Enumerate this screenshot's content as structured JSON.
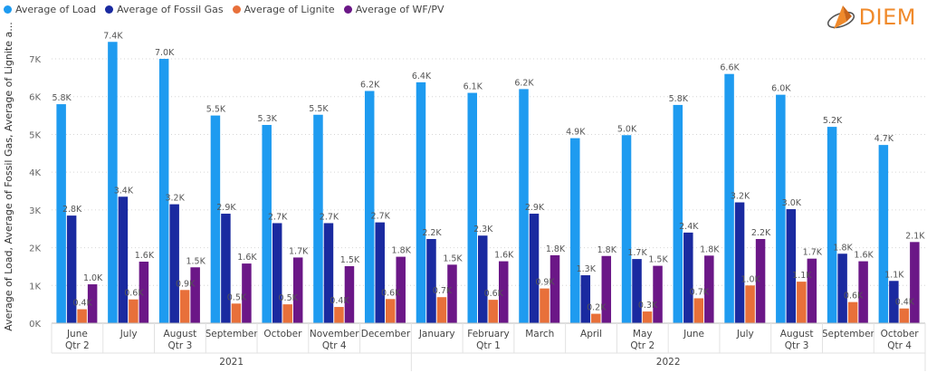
{
  "legend": [
    {
      "label": "Average of  Load",
      "color": "#1e9bf0"
    },
    {
      "label": "Average of Fossil Gas",
      "color": "#1a2aa0"
    },
    {
      "label": "Average of Lignite",
      "color": "#e8703a"
    },
    {
      "label": "Average of WF/PV",
      "color": "#6b1787"
    }
  ],
  "logo": {
    "text": "DIEM"
  },
  "chart_data": {
    "type": "bar",
    "ylabel": "Average of Load, Average of Fossil Gas, Average of Lignite a...",
    "ylim": [
      0,
      7600
    ],
    "yticks": [
      {
        "value": 0,
        "label": "0K"
      },
      {
        "value": 1000,
        "label": "1K"
      },
      {
        "value": 2000,
        "label": "2K"
      },
      {
        "value": 3000,
        "label": "3K"
      },
      {
        "value": 4000,
        "label": "4K"
      },
      {
        "value": 5000,
        "label": "5K"
      },
      {
        "value": 6000,
        "label": "6K"
      },
      {
        "value": 7000,
        "label": "7K"
      }
    ],
    "categories": [
      "June",
      "July",
      "August",
      "September",
      "October",
      "November",
      "December",
      "January",
      "February",
      "March",
      "April",
      "May",
      "June",
      "July",
      "August",
      "September",
      "October"
    ],
    "quarters": [
      {
        "label": "Qtr 2",
        "start": 0,
        "end": 0
      },
      {
        "label": "Qtr 3",
        "start": 1,
        "end": 3
      },
      {
        "label": "Qtr 4",
        "start": 4,
        "end": 6
      },
      {
        "label": "Qtr 1",
        "start": 7,
        "end": 9
      },
      {
        "label": "Qtr 2",
        "start": 10,
        "end": 12
      },
      {
        "label": "Qtr 3",
        "start": 13,
        "end": 15
      },
      {
        "label": "Qtr 4",
        "start": 16,
        "end": 16
      }
    ],
    "years": [
      {
        "label": "2021",
        "start": 0,
        "end": 6
      },
      {
        "label": "2022",
        "start": 7,
        "end": 16
      }
    ],
    "series": [
      {
        "name": "Average of  Load",
        "color": "#1e9bf0",
        "values": [
          5800,
          7450,
          7000,
          5500,
          5250,
          5520,
          6150,
          6380,
          6100,
          6200,
          4900,
          4980,
          5780,
          6600,
          6050,
          5200,
          4720
        ],
        "labels": [
          "5.8K",
          "7.4K",
          "7.0K",
          "5.5K",
          "5.3K",
          "5.5K",
          "6.2K",
          "6.4K",
          "6.1K",
          "6.2K",
          "4.9K",
          "5.0K",
          "5.8K",
          "6.6K",
          "6.0K",
          "5.2K",
          "4.7K"
        ]
      },
      {
        "name": "Average of Fossil Gas",
        "color": "#1a2aa0",
        "values": [
          2850,
          3350,
          3150,
          2900,
          2650,
          2650,
          2670,
          2230,
          2320,
          2900,
          1270,
          1700,
          2400,
          3200,
          3020,
          1840,
          1120
        ],
        "labels": [
          "2.8K",
          "3.4K",
          "3.2K",
          "2.9K",
          "2.7K",
          "2.7K",
          "2.7K",
          "2.2K",
          "2.3K",
          "2.9K",
          "1.3K",
          "1.7K",
          "2.4K",
          "3.2K",
          "3.0K",
          "1.8K",
          "1.1K"
        ]
      },
      {
        "name": "Average of Lignite",
        "color": "#e8703a",
        "values": [
          370,
          630,
          880,
          520,
          500,
          430,
          640,
          690,
          620,
          920,
          250,
          310,
          660,
          1000,
          1100,
          560,
          390
        ],
        "labels": [
          "0.4K",
          "0.6K",
          "0.9K",
          "0.5K",
          "0.5K",
          "0.4K",
          "0.6K",
          "0.7K",
          "0.6K",
          "0.9K",
          "0.2K",
          "0.3K",
          "0.7K",
          "1.0K",
          "1.1K",
          "0.6K",
          "0.4K"
        ]
      },
      {
        "name": "Average of WF/PV",
        "color": "#6b1787",
        "values": [
          1030,
          1630,
          1480,
          1580,
          1740,
          1510,
          1760,
          1550,
          1640,
          1800,
          1780,
          1520,
          1790,
          2230,
          1710,
          1640,
          2150
        ],
        "labels": [
          "1.0K",
          "1.6K",
          "1.5K",
          "1.6K",
          "1.7K",
          "1.5K",
          "1.8K",
          "1.5K",
          "1.6K",
          "1.8K",
          "1.8K",
          "1.5K",
          "1.8K",
          "2.2K",
          "1.7K",
          "1.6K",
          "2.1K"
        ]
      }
    ]
  }
}
